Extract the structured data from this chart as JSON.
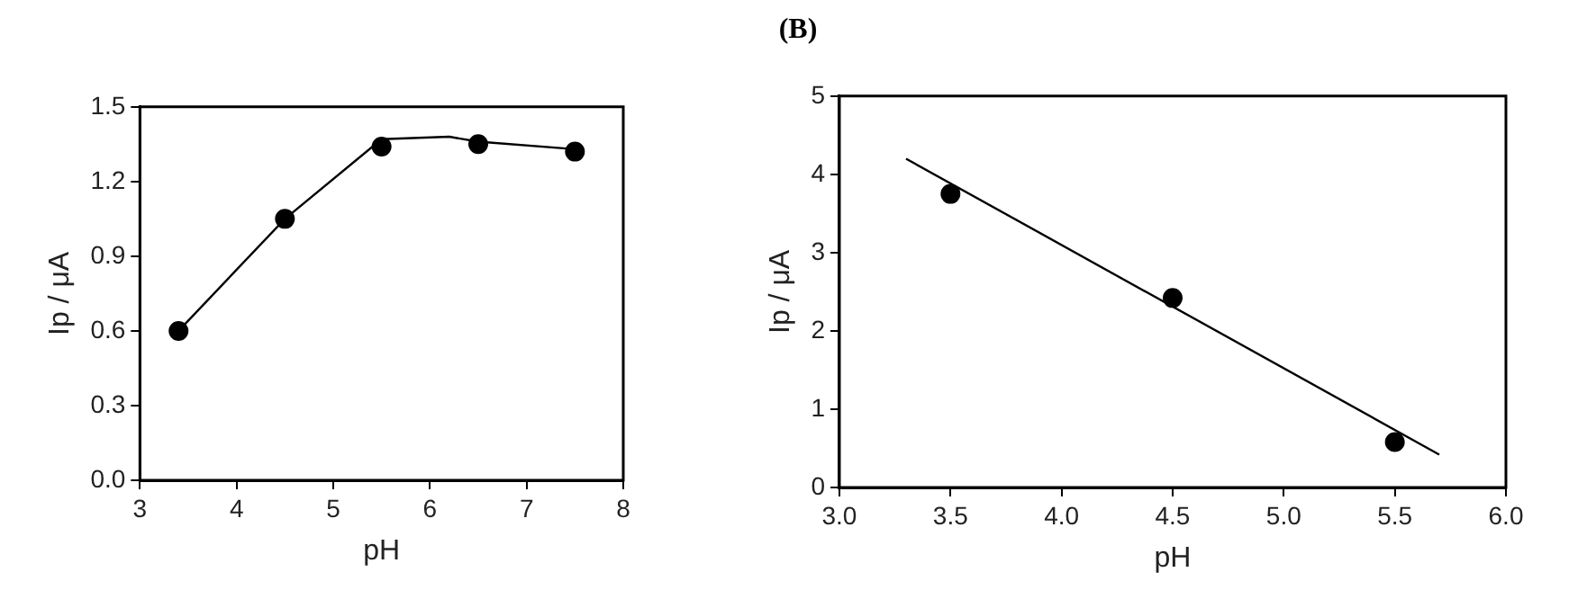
{
  "chart_data": [
    {
      "type": "scatter",
      "xlabel": "pH",
      "ylabel": "Ip / μA",
      "xlim": [
        3,
        8
      ],
      "xticks": [
        3,
        4,
        5,
        6,
        7,
        8
      ],
      "ylim": [
        0,
        1.5
      ],
      "yticks": [
        {
          "value": 0,
          "label": "0.0"
        },
        0.3,
        0.6,
        0.9,
        1.2,
        1.5
      ],
      "grid": false,
      "legend": false,
      "series": [
        {
          "type": "scatter",
          "color": "#000000",
          "marker": "circle",
          "x": [
            3.4,
            4.5,
            5.5,
            6.5,
            7.5
          ],
          "values": [
            0.6,
            1.05,
            1.34,
            1.35,
            1.32
          ]
        },
        {
          "type": "line",
          "color": "#000000",
          "marker": "none",
          "line_style": "solid",
          "x": [
            3.4,
            4.5,
            5.5,
            6.2,
            6.5,
            7.5
          ],
          "values": [
            0.6,
            1.05,
            1.37,
            1.38,
            1.36,
            1.33
          ]
        }
      ]
    },
    {
      "type": "scatter",
      "title": "(B)",
      "xlabel": "pH",
      "ylabel": "Ip / μA",
      "xlim": [
        3,
        6
      ],
      "xticks": [
        {
          "value": 3,
          "label": "3.0"
        },
        3.5,
        {
          "value": 4,
          "label": "4.0"
        },
        4.5,
        {
          "value": 5,
          "label": "5.0"
        },
        5.5,
        {
          "value": 6,
          "label": "6.0"
        }
      ],
      "ylim": [
        0,
        5
      ],
      "yticks": [
        0,
        1,
        2,
        3,
        4,
        5
      ],
      "grid": false,
      "legend": false,
      "series": [
        {
          "type": "scatter",
          "color": "#000000",
          "marker": "circle",
          "x": [
            3.5,
            4.5,
            5.5
          ],
          "values": [
            3.75,
            2.42,
            0.58
          ]
        },
        {
          "type": "line",
          "color": "#000000",
          "marker": "none",
          "line_style": "solid",
          "x": [
            3.3,
            5.7
          ],
          "values": [
            4.2,
            0.42
          ]
        }
      ]
    }
  ]
}
